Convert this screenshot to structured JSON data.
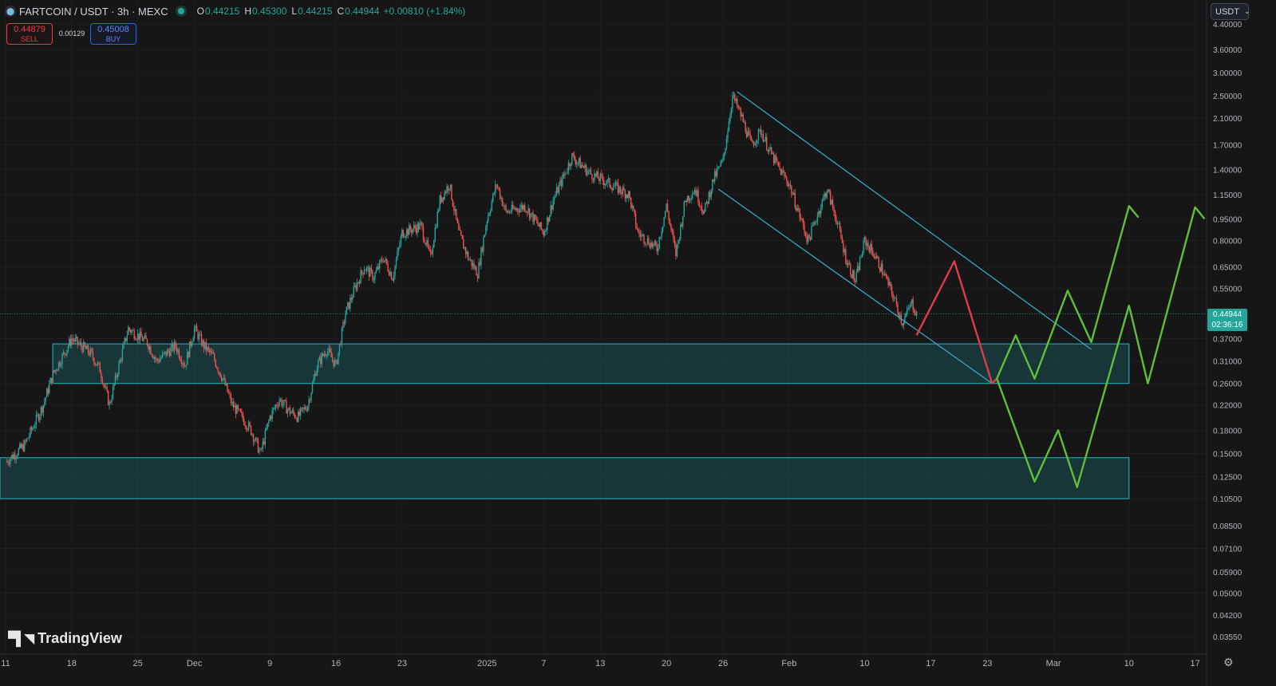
{
  "header": {
    "symbol": "FARTCOIN / USDT · 3h · MEXC",
    "o_label": "O",
    "o": "0.44215",
    "h_label": "H",
    "h": "0.45300",
    "l_label": "L",
    "l": "0.44215",
    "c_label": "C",
    "c": "0.44944",
    "change": "+0.00810 (+1.84%)"
  },
  "trade": {
    "sell_price": "0.44879",
    "sell_label": "SELL",
    "spread": "0.00129",
    "buy_price": "0.45008",
    "buy_label": "BUY"
  },
  "currency": "USDT",
  "last_price": {
    "price": "0.44944",
    "countdown": "02:36:16"
  },
  "branding": "TradingView",
  "colors": {
    "up": "#26a69a",
    "down": "#ef5350",
    "zone": "#1fa3ad",
    "channel": "#35a8c8",
    "bear_path": "#e03a4d",
    "bull_path": "#5fbf3a"
  },
  "chart_data": {
    "type": "candlestick",
    "scale": "log",
    "price_axis_ticks": [
      "4.40000",
      "3.60000",
      "3.00000",
      "2.50000",
      "2.10000",
      "1.70000",
      "1.40000",
      "1.15000",
      "0.95000",
      "0.80000",
      "0.65000",
      "0.55000",
      "0.37000",
      "0.31000",
      "0.26000",
      "0.22000",
      "0.18000",
      "0.15000",
      "0.12500",
      "0.10500",
      "0.08500",
      "0.07100",
      "0.05900",
      "0.05000",
      "0.04200",
      "0.03550"
    ],
    "time_axis_labels": [
      "11",
      "18",
      "25",
      "Dec",
      "9",
      "16",
      "23",
      "2025",
      "7",
      "13",
      "20",
      "26",
      "Feb",
      "10",
      "17",
      "23",
      "Mar",
      "10",
      "17"
    ],
    "time_axis_day_offsets": [
      0,
      7,
      14,
      20,
      28,
      35,
      42,
      51,
      57,
      63,
      70,
      76,
      83,
      91,
      98,
      104,
      111,
      119,
      126
    ],
    "ylim": [
      0.032,
      4.6
    ],
    "price_path": [
      [
        0,
        0.14
      ],
      [
        2,
        0.16
      ],
      [
        4,
        0.22
      ],
      [
        5,
        0.28
      ],
      [
        6,
        0.32
      ],
      [
        7,
        0.37
      ],
      [
        9,
        0.33
      ],
      [
        10,
        0.29
      ],
      [
        11,
        0.22
      ],
      [
        12,
        0.3
      ],
      [
        13,
        0.4
      ],
      [
        15,
        0.36
      ],
      [
        16,
        0.31
      ],
      [
        18,
        0.35
      ],
      [
        19,
        0.3
      ],
      [
        20,
        0.4
      ],
      [
        21,
        0.35
      ],
      [
        22,
        0.32
      ],
      [
        23,
        0.27
      ],
      [
        24,
        0.22
      ],
      [
        25,
        0.2
      ],
      [
        26,
        0.18
      ],
      [
        27,
        0.15
      ],
      [
        28,
        0.2
      ],
      [
        29,
        0.23
      ],
      [
        30,
        0.21
      ],
      [
        31,
        0.2
      ],
      [
        32,
        0.22
      ],
      [
        33,
        0.3
      ],
      [
        34,
        0.34
      ],
      [
        35,
        0.3
      ],
      [
        36,
        0.45
      ],
      [
        37,
        0.55
      ],
      [
        38,
        0.65
      ],
      [
        39,
        0.6
      ],
      [
        40,
        0.7
      ],
      [
        41,
        0.6
      ],
      [
        42,
        0.85
      ],
      [
        44,
        0.9
      ],
      [
        45,
        0.7
      ],
      [
        46,
        1.1
      ],
      [
        47,
        1.25
      ],
      [
        48,
        0.85
      ],
      [
        49,
        0.7
      ],
      [
        50,
        0.62
      ],
      [
        51,
        0.95
      ],
      [
        52,
        1.25
      ],
      [
        53,
        1.0
      ],
      [
        55,
        1.05
      ],
      [
        57,
        0.85
      ],
      [
        58,
        1.1
      ],
      [
        59,
        1.3
      ],
      [
        60,
        1.55
      ],
      [
        62,
        1.35
      ],
      [
        63,
        1.3
      ],
      [
        64,
        1.25
      ],
      [
        66,
        1.15
      ],
      [
        67,
        0.85
      ],
      [
        68,
        0.8
      ],
      [
        69,
        0.75
      ],
      [
        70,
        1.05
      ],
      [
        71,
        0.72
      ],
      [
        72,
        1.1
      ],
      [
        73,
        1.2
      ],
      [
        74,
        1.0
      ],
      [
        75,
        1.3
      ],
      [
        76,
        1.5
      ],
      [
        77,
        2.5
      ],
      [
        78,
        2.1
      ],
      [
        79,
        1.7
      ],
      [
        80,
        1.9
      ],
      [
        81,
        1.6
      ],
      [
        82,
        1.4
      ],
      [
        83,
        1.25
      ],
      [
        84,
        1.0
      ],
      [
        85,
        0.8
      ],
      [
        86,
        0.98
      ],
      [
        87,
        1.2
      ],
      [
        88,
        0.95
      ],
      [
        89,
        0.7
      ],
      [
        90,
        0.58
      ],
      [
        91,
        0.8
      ],
      [
        92,
        0.72
      ],
      [
        93,
        0.62
      ],
      [
        94,
        0.52
      ],
      [
        95,
        0.42
      ],
      [
        96,
        0.49
      ],
      [
        96.5,
        0.449
      ]
    ],
    "last_price": 0.44944,
    "support_zones": [
      {
        "from_day": 5,
        "to_day": 119,
        "low": 0.26,
        "high": 0.355
      },
      {
        "from_day": -1,
        "to_day": 119,
        "low": 0.105,
        "high": 0.145
      }
    ],
    "channel": {
      "upper": [
        [
          77.5,
          2.58
        ],
        [
          115,
          0.34
        ]
      ],
      "lower": [
        [
          75.5,
          1.2
        ],
        [
          104.5,
          0.26
        ]
      ]
    },
    "bear_projection": [
      [
        96.5,
        0.38
      ],
      [
        100.5,
        0.68
      ],
      [
        104.5,
        0.26
      ],
      [
        105,
        0.27
      ]
    ],
    "bull_projection_a": [
      [
        105,
        0.27
      ],
      [
        107,
        0.38
      ],
      [
        109,
        0.27
      ],
      [
        112.5,
        0.54
      ],
      [
        115,
        0.36
      ],
      [
        119,
        1.05
      ],
      [
        120,
        0.96
      ]
    ],
    "bull_projection_b": [
      [
        105,
        0.27
      ],
      [
        109,
        0.12
      ],
      [
        111.5,
        0.18
      ],
      [
        113.5,
        0.115
      ],
      [
        119,
        0.48
      ],
      [
        121,
        0.26
      ],
      [
        126,
        1.04
      ],
      [
        127,
        0.95
      ]
    ]
  }
}
